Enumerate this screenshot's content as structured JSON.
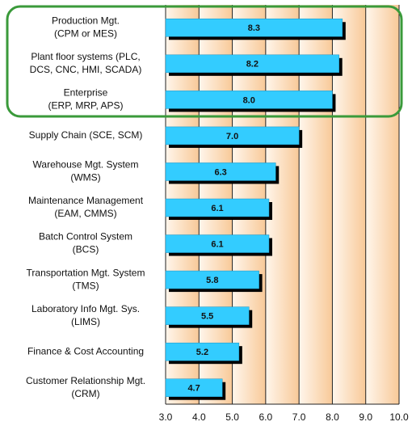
{
  "chart_data": {
    "type": "bar",
    "orientation": "horizontal",
    "categories": [
      [
        "Production Mgt.",
        "(CPM or MES)"
      ],
      [
        "Plant floor systems (PLC,",
        "DCS, CNC, HMI, SCADA)"
      ],
      [
        "Enterprise",
        "(ERP, MRP, APS)"
      ],
      [
        "Supply Chain (SCE, SCM)"
      ],
      [
        "Warehouse Mgt. System",
        "(WMS)"
      ],
      [
        "Maintenance Management",
        "(EAM, CMMS)"
      ],
      [
        "Batch Control System",
        "(BCS)"
      ],
      [
        "Transportation Mgt. System",
        "(TMS)"
      ],
      [
        "Laboratory Info Mgt. Sys.",
        "(LIMS)"
      ],
      [
        "Finance & Cost Accounting"
      ],
      [
        "Customer Relationship Mgt.",
        "(CRM)"
      ]
    ],
    "values": [
      8.3,
      8.2,
      8.0,
      7.0,
      6.3,
      6.1,
      6.1,
      5.8,
      5.5,
      5.2,
      4.7
    ],
    "value_labels": [
      "8.3",
      "8.2",
      "8.0",
      "7.0",
      "6.3",
      "6.1",
      "6.1",
      "5.8",
      "5.5",
      "5.2",
      "4.7"
    ],
    "color": "#33ccff",
    "xlim": [
      3,
      10
    ],
    "xticks": [
      {
        "value": 3,
        "label": "3.0"
      },
      {
        "value": 4,
        "label": "4.0"
      },
      {
        "value": 5,
        "label": "5.0"
      },
      {
        "value": 6,
        "label": "6.0"
      },
      {
        "value": 7,
        "label": "7.0"
      },
      {
        "value": 8,
        "label": "8.0"
      },
      {
        "value": 9,
        "label": "9.0"
      },
      {
        "value": 10,
        "label": "10.0"
      }
    ],
    "grid": true
  }
}
